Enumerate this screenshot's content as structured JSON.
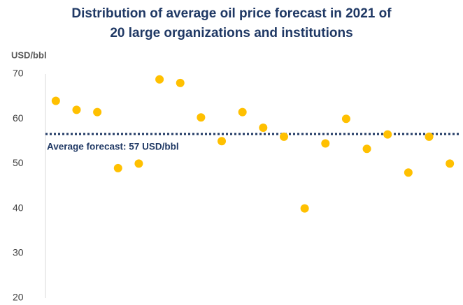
{
  "chart_data": {
    "type": "dot",
    "title": [
      "Distribution of average oil price forecast in 2021 of",
      "20 large organizations and institutions"
    ],
    "y_label": "USD/bbl",
    "categories": [
      null,
      null,
      null,
      null,
      null,
      null,
      null,
      null,
      null,
      null,
      null,
      null,
      null,
      null,
      null,
      null,
      null,
      null,
      null,
      null
    ],
    "values": [
      64,
      62,
      61.5,
      49,
      50,
      68.8,
      68,
      60.3,
      55,
      61.5,
      58,
      56,
      40,
      54.5,
      60,
      53.3,
      56.5,
      48,
      56,
      50
    ],
    "color": "#ffc000",
    "average_line": {
      "value": 56.6,
      "label": "Average forecast: 57 USD/bbl",
      "color": "#1f3864"
    },
    "ylim": [
      20,
      70
    ],
    "yticks": [
      20,
      30,
      40,
      50,
      60,
      70
    ],
    "grid": false
  }
}
